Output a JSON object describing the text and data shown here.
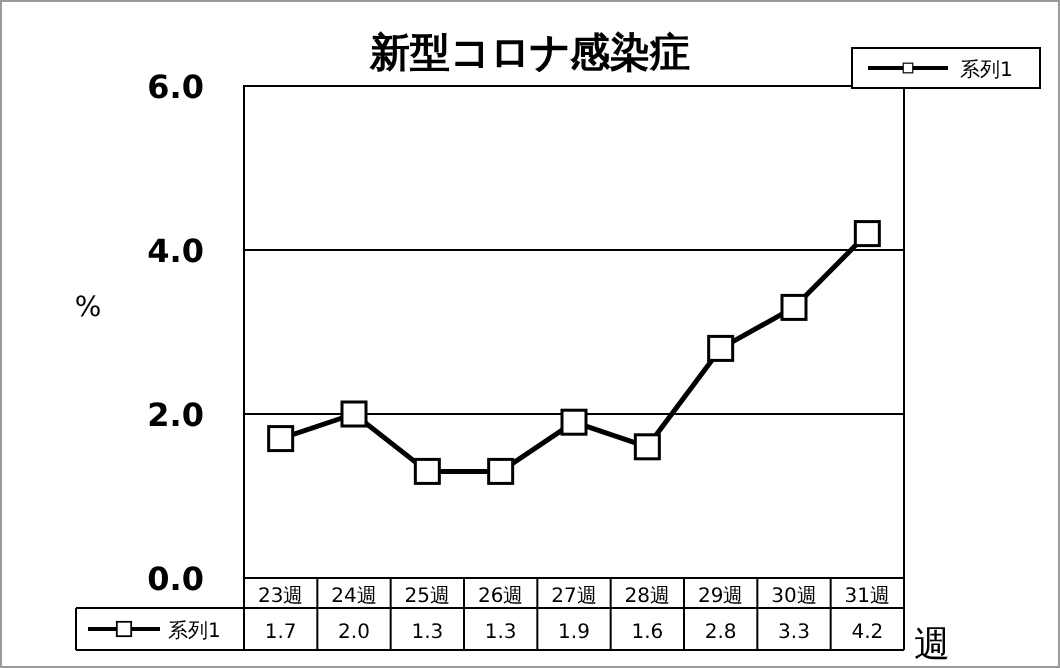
{
  "chart_data": {
    "type": "line",
    "title": "新型コロナ感染症",
    "xlabel": "週",
    "ylabel": "%",
    "categories": [
      "23週",
      "24週",
      "25週",
      "26週",
      "27週",
      "28週",
      "29週",
      "30週",
      "31週"
    ],
    "series": [
      {
        "name": "系列1",
        "color": "#000000",
        "values": [
          1.7,
          2.0,
          1.3,
          1.3,
          1.9,
          1.6,
          2.8,
          3.3,
          4.2
        ],
        "value_labels": [
          "1.7",
          "2.0",
          "1.3",
          "1.3",
          "1.9",
          "1.6",
          "2.8",
          "3.3",
          "4.2"
        ]
      }
    ],
    "ylim": [
      0,
      6
    ],
    "yticks": [
      {
        "value": 0,
        "label": "0.0"
      },
      {
        "value": 2,
        "label": "2.0"
      },
      {
        "value": 4,
        "label": "4.0"
      },
      {
        "value": 6,
        "label": "6.0"
      }
    ],
    "grid": "y",
    "legend": "bottom left",
    "marker": "square",
    "line_style": "solid"
  }
}
